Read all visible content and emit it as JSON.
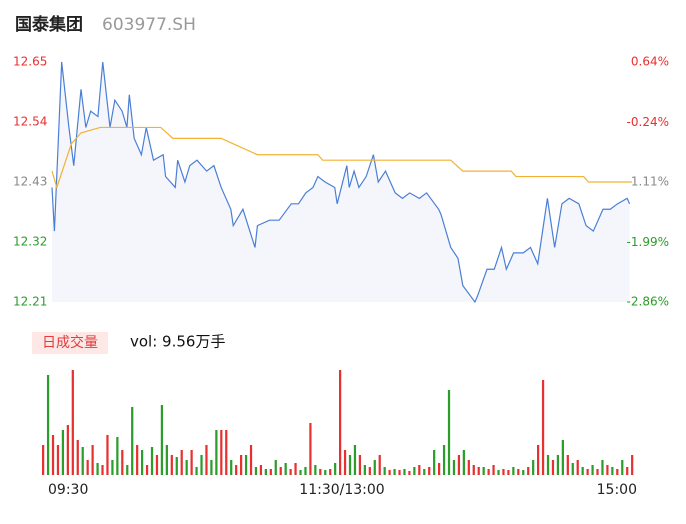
{
  "header": {
    "name": "国泰集团",
    "code": "603977.SH"
  },
  "chart_data": [
    {
      "type": "line",
      "xlim": [
        0,
        240
      ],
      "xticks": [
        {
          "value": 0,
          "label": "09:30"
        },
        {
          "value": 120,
          "label": "11:30/13:00"
        },
        {
          "value": 240,
          "label": "15:00"
        }
      ],
      "ylim": [
        12.21,
        12.65
      ],
      "yticks": [
        12.65,
        12.54,
        12.43,
        12.32,
        12.21
      ],
      "y2lim": [
        -2.86,
        0.64
      ],
      "y2ticks": [
        {
          "value": 0.64,
          "label": "0.64%"
        },
        {
          "value": -0.24,
          "label": "-0.24%"
        },
        {
          "value": -1.11,
          "label": "-1.11%"
        },
        {
          "value": -1.99,
          "label": "-1.99%"
        },
        {
          "value": -2.86,
          "label": "-2.86%"
        }
      ],
      "up_color": "#e83030",
      "flat_color": "#888888",
      "down_color": "#2a9d2a",
      "series": [
        {
          "color": "#4a7fd6",
          "x": [
            0,
            1,
            4,
            7,
            9,
            12,
            14,
            16,
            19,
            21,
            24,
            26,
            29,
            31,
            32,
            34,
            37,
            39,
            42,
            46,
            47,
            51,
            52,
            55,
            57,
            60,
            64,
            67,
            70,
            74,
            75,
            79,
            84,
            85,
            90,
            94,
            99,
            102,
            105,
            108,
            110,
            113,
            117,
            118,
            122,
            123,
            125,
            127,
            130,
            133,
            135,
            138,
            142,
            145,
            148,
            152,
            155,
            160,
            161,
            165,
            168,
            170,
            175,
            176,
            180,
            183,
            186,
            188,
            191,
            195,
            198,
            201,
            205,
            208,
            211,
            214,
            218,
            221,
            224,
            228,
            231,
            234,
            238,
            239
          ],
          "values": [
            12.42,
            12.34,
            12.65,
            12.53,
            12.46,
            12.6,
            12.53,
            12.56,
            12.55,
            12.65,
            12.53,
            12.58,
            12.56,
            12.53,
            12.59,
            12.51,
            12.48,
            12.53,
            12.47,
            12.48,
            12.44,
            12.42,
            12.47,
            12.43,
            12.46,
            12.47,
            12.45,
            12.46,
            12.42,
            12.38,
            12.35,
            12.38,
            12.31,
            12.35,
            12.36,
            12.36,
            12.39,
            12.39,
            12.41,
            12.42,
            12.44,
            12.43,
            12.42,
            12.39,
            12.46,
            12.42,
            12.45,
            12.42,
            12.44,
            12.48,
            12.43,
            12.45,
            12.41,
            12.4,
            12.41,
            12.4,
            12.41,
            12.38,
            12.37,
            12.31,
            12.29,
            12.24,
            12.21,
            12.22,
            12.27,
            12.27,
            12.31,
            12.27,
            12.3,
            12.3,
            12.31,
            12.28,
            12.4,
            12.31,
            12.39,
            12.4,
            12.39,
            12.35,
            12.34,
            12.38,
            12.38,
            12.39,
            12.4,
            12.39
          ]
        },
        {
          "color": "#f2b233",
          "x": [
            0,
            2,
            8,
            12,
            20,
            45,
            50,
            70,
            75,
            85,
            110,
            112,
            165,
            170,
            190,
            192,
            220,
            222,
            240
          ],
          "values": [
            12.45,
            12.42,
            12.5,
            12.52,
            12.53,
            12.53,
            12.51,
            12.51,
            12.5,
            12.48,
            12.48,
            12.47,
            12.47,
            12.45,
            12.45,
            12.44,
            12.44,
            12.43,
            12.43
          ]
        }
      ]
    },
    {
      "type": "volume",
      "legend": "日成交量",
      "label": "vol: 9.56万手",
      "ylim": [
        0,
        110
      ],
      "up_color": "#e83030",
      "down_color": "#2a9d2a",
      "values": [
        30,
        100,
        40,
        30,
        45,
        50,
        105,
        35,
        28,
        15,
        30,
        12,
        10,
        40,
        15,
        38,
        25,
        10,
        68,
        30,
        25,
        10,
        28,
        20,
        70,
        30,
        20,
        18,
        25,
        15,
        25,
        8,
        20,
        30,
        15,
        45,
        45,
        45,
        15,
        10,
        20,
        20,
        30,
        8,
        10,
        6,
        6,
        15,
        8,
        12,
        6,
        12,
        5,
        8,
        52,
        10,
        6,
        5,
        6,
        12,
        105,
        25,
        20,
        30,
        20,
        10,
        8,
        15,
        20,
        8,
        5,
        6,
        5,
        6,
        4,
        8,
        10,
        6,
        8,
        25,
        12,
        30,
        85,
        15,
        20,
        25,
        15,
        10,
        8,
        8,
        6,
        10,
        5,
        6,
        5,
        8,
        6,
        5,
        8,
        15,
        30,
        95,
        20,
        15,
        20,
        35,
        20,
        12,
        15,
        8,
        6,
        10,
        6,
        15,
        10,
        8,
        6,
        15,
        8,
        20
      ],
      "up": [
        1,
        0,
        1,
        1,
        0,
        1,
        1,
        1,
        0,
        1,
        1,
        0,
        1,
        1,
        0,
        0,
        1,
        0,
        0,
        1,
        0,
        1,
        0,
        1,
        0,
        0,
        1,
        0,
        1,
        0,
        1,
        0,
        0,
        1,
        0,
        0,
        1,
        1,
        0,
        1,
        1,
        0,
        1,
        0,
        1,
        0,
        1,
        0,
        1,
        0,
        1,
        1,
        0,
        0,
        1,
        0,
        1,
        0,
        1,
        0,
        1,
        1,
        0,
        0,
        1,
        0,
        1,
        0,
        1,
        0,
        1,
        0,
        1,
        0,
        1,
        0,
        1,
        0,
        1,
        0,
        1,
        0,
        0,
        0,
        1,
        0,
        1,
        1,
        1,
        0,
        1,
        1,
        0,
        1,
        1,
        0,
        1,
        0,
        1,
        0,
        1,
        1,
        0,
        1,
        0,
        0,
        1,
        0,
        1,
        0,
        1,
        0,
        1,
        0,
        1,
        0,
        1,
        0,
        1,
        1
      ]
    }
  ]
}
